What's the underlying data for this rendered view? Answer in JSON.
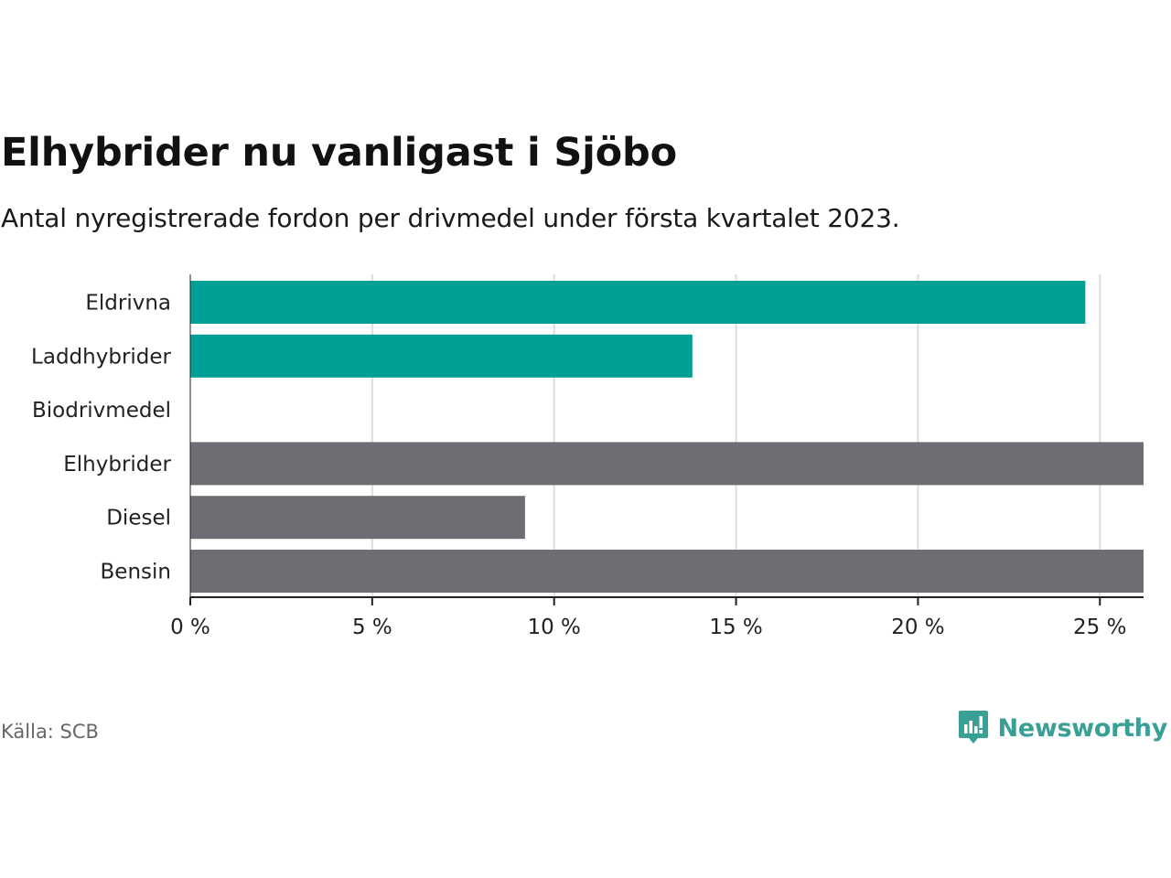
{
  "title": "Elhybrider nu vanligast i Sjöbo",
  "subtitle": "Antal nyregistrerade fordon per drivmedel under första kvartalet 2023.",
  "source": "Källa: SCB",
  "brand": {
    "name": "Newsworthy",
    "icon": "newsworthy-logo-icon",
    "color": "#3a9f95"
  },
  "colors": {
    "green": "#00a097",
    "gray": "#6e6d73",
    "grid": "#dddddd",
    "axis": "#222222"
  },
  "chart_data": {
    "type": "bar",
    "orientation": "horizontal",
    "title": "Elhybrider nu vanligast i Sjöbo",
    "subtitle": "Antal nyregistrerade fordon per drivmedel under första kvartalet 2023.",
    "categories": [
      "Eldrivna",
      "Laddhybrider",
      "Biodrivmedel",
      "Elhybrider",
      "Diesel",
      "Bensin"
    ],
    "values": [
      24.6,
      13.8,
      0,
      26.2,
      9.2,
      26.2
    ],
    "bar_colors": [
      "green",
      "green",
      "green",
      "gray",
      "gray",
      "gray"
    ],
    "xlim": [
      0,
      26.2
    ],
    "xticks": [
      0,
      5,
      10,
      15,
      20,
      25
    ],
    "xtick_labels": [
      "0 %",
      "5 %",
      "10 %",
      "15 %",
      "20 %",
      "25 %"
    ],
    "xlabel": "",
    "ylabel": "",
    "grid": "vertical",
    "legend": "none"
  }
}
